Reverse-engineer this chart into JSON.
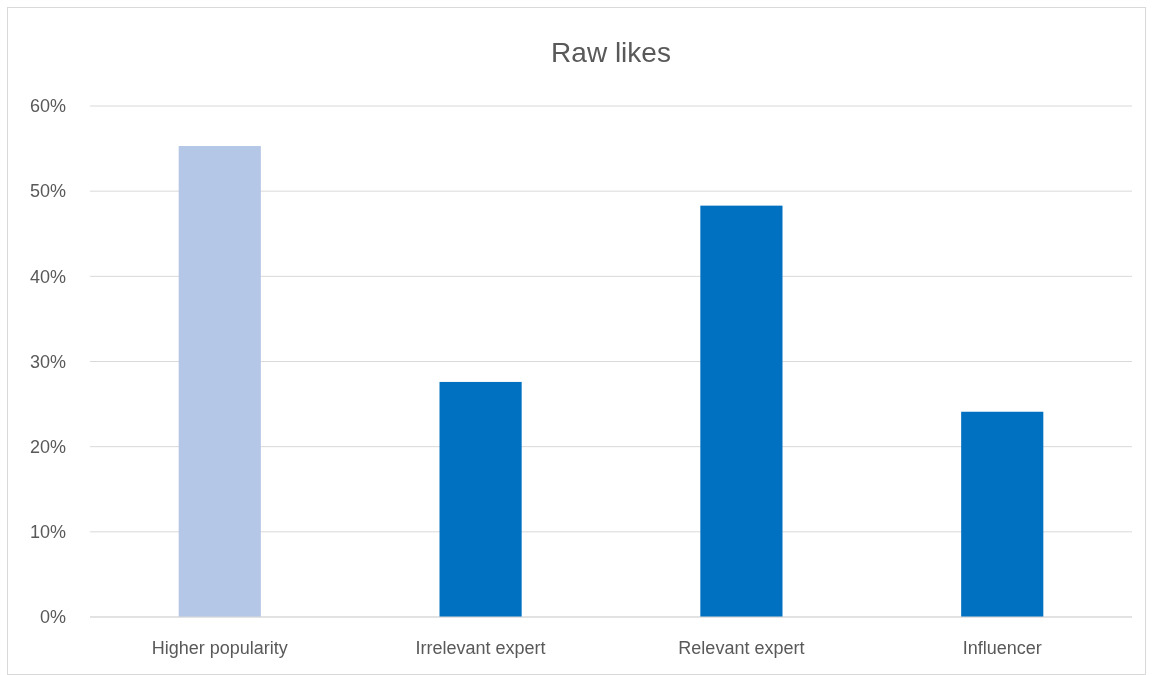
{
  "chart_data": {
    "type": "bar",
    "title": "Raw likes",
    "categories": [
      "Higher popularity",
      "Irrelevant expert",
      "Relevant expert",
      "Influencer"
    ],
    "values": [
      55.3,
      27.6,
      48.3,
      24.1
    ],
    "colors": [
      "#b4c7e7",
      "#0070c0",
      "#0070c0",
      "#0070c0"
    ],
    "ylim": [
      0,
      60
    ],
    "yticks": [
      {
        "value": 0,
        "label": "0%"
      },
      {
        "value": 10,
        "label": "10%"
      },
      {
        "value": 20,
        "label": "20%"
      },
      {
        "value": 30,
        "label": "30%"
      },
      {
        "value": 40,
        "label": "40%"
      },
      {
        "value": 50,
        "label": "50%"
      },
      {
        "value": 60,
        "label": "60%"
      }
    ],
    "grid": "y"
  }
}
